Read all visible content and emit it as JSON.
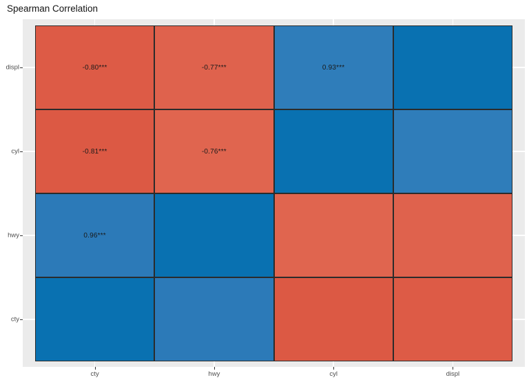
{
  "title": "Spearman Correlation",
  "colors": {
    "panel_background": "#EBEBEB",
    "gridline": "#FFFFFF",
    "cell_border": "#2B2B2B",
    "cell_label_text": "#1A1A1A",
    "axis_text": "#4D4D4D",
    "title_text": "#141414",
    "positive_strong": "#0971B1",
    "positive_mid": "#2C7AB8",
    "negative_strong": "#DC5944",
    "negative_mid": "#DF624D"
  },
  "chart_data": {
    "type": "heatmap",
    "title": "Spearman Correlation",
    "xlabel": "",
    "ylabel": "",
    "legend": "none",
    "grid": "white lines at category tick centers",
    "x_categories": [
      "cty",
      "hwy",
      "cyl",
      "displ"
    ],
    "y_categories_top_to_bottom": [
      "displ",
      "cyl",
      "hwy",
      "cty"
    ],
    "value_range": [
      -1,
      1
    ],
    "significance_note": "*** shown on labeled cells",
    "rows": [
      {
        "row": "displ",
        "values": [
          -0.8,
          -0.77,
          0.93,
          1.0
        ],
        "labels": [
          "-0.80***",
          "-0.77***",
          "0.93***",
          ""
        ],
        "colors": [
          "#DD5B46",
          "#DF624D",
          "#2F7DBA",
          "#0971B1"
        ]
      },
      {
        "row": "cyl",
        "values": [
          -0.81,
          -0.76,
          1.0,
          0.93
        ],
        "labels": [
          "-0.81***",
          "-0.76***",
          "",
          ""
        ],
        "colors": [
          "#DC5944",
          "#E0654F",
          "#0971B1",
          "#2F7DBA"
        ]
      },
      {
        "row": "hwy",
        "values": [
          0.96,
          1.0,
          -0.76,
          -0.77
        ],
        "labels": [
          "0.96***",
          "",
          "",
          ""
        ],
        "colors": [
          "#2C7AB8",
          "#0971B1",
          "#E0654F",
          "#DF624D"
        ]
      },
      {
        "row": "cty",
        "values": [
          1.0,
          0.96,
          -0.81,
          -0.8
        ],
        "labels": [
          "",
          "",
          "",
          ""
        ],
        "colors": [
          "#0971B1",
          "#2C7AB8",
          "#DC5944",
          "#DD5B46"
        ]
      }
    ]
  }
}
